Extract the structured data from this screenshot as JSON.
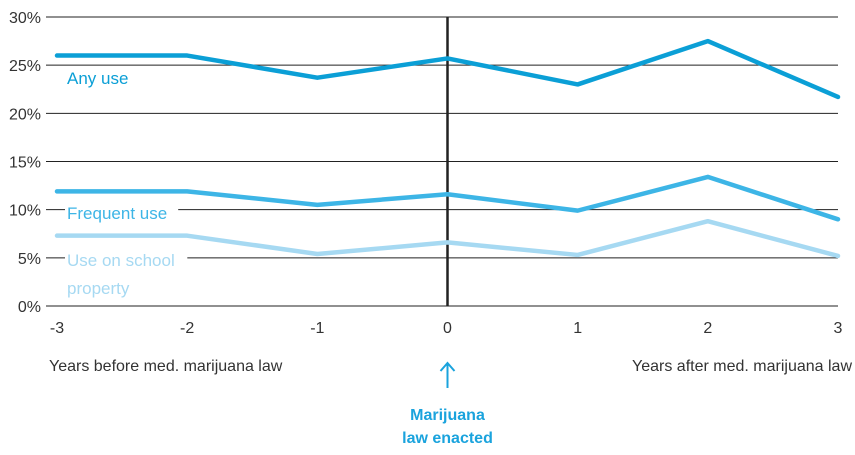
{
  "chart_data": {
    "type": "line",
    "x": [
      -3,
      -2,
      -1,
      0,
      1,
      2,
      3
    ],
    "y_ticks": [
      "0%",
      "5%",
      "10%",
      "15%",
      "20%",
      "25%",
      "30%"
    ],
    "y_tick_values": [
      0,
      5,
      10,
      15,
      20,
      25,
      30
    ],
    "ylim": [
      0,
      30
    ],
    "xlim": [
      -3,
      3
    ],
    "grid": "horizontal",
    "series": [
      {
        "name": "Any use",
        "values": [
          26.0,
          26.0,
          23.7,
          25.7,
          23.0,
          27.5,
          21.7
        ],
        "color": "#0b9fd6"
      },
      {
        "name": "Frequent use",
        "values": [
          11.9,
          11.9,
          10.5,
          11.6,
          9.9,
          13.4,
          9.0
        ],
        "color": "#3db5e6"
      },
      {
        "name": "Use on school property",
        "label_lines": [
          "Use on school",
          "property"
        ],
        "values": [
          7.3,
          7.3,
          5.4,
          6.6,
          5.3,
          8.8,
          5.2
        ],
        "color": "#a6d9f2"
      }
    ],
    "x_caption_left": "Years before med. marijuana law",
    "x_caption_right": "Years after med. marijuana law",
    "event": {
      "x": 0,
      "label_lines": [
        "Marijuana",
        "law enacted"
      ],
      "color": "#1aa3dd"
    }
  }
}
